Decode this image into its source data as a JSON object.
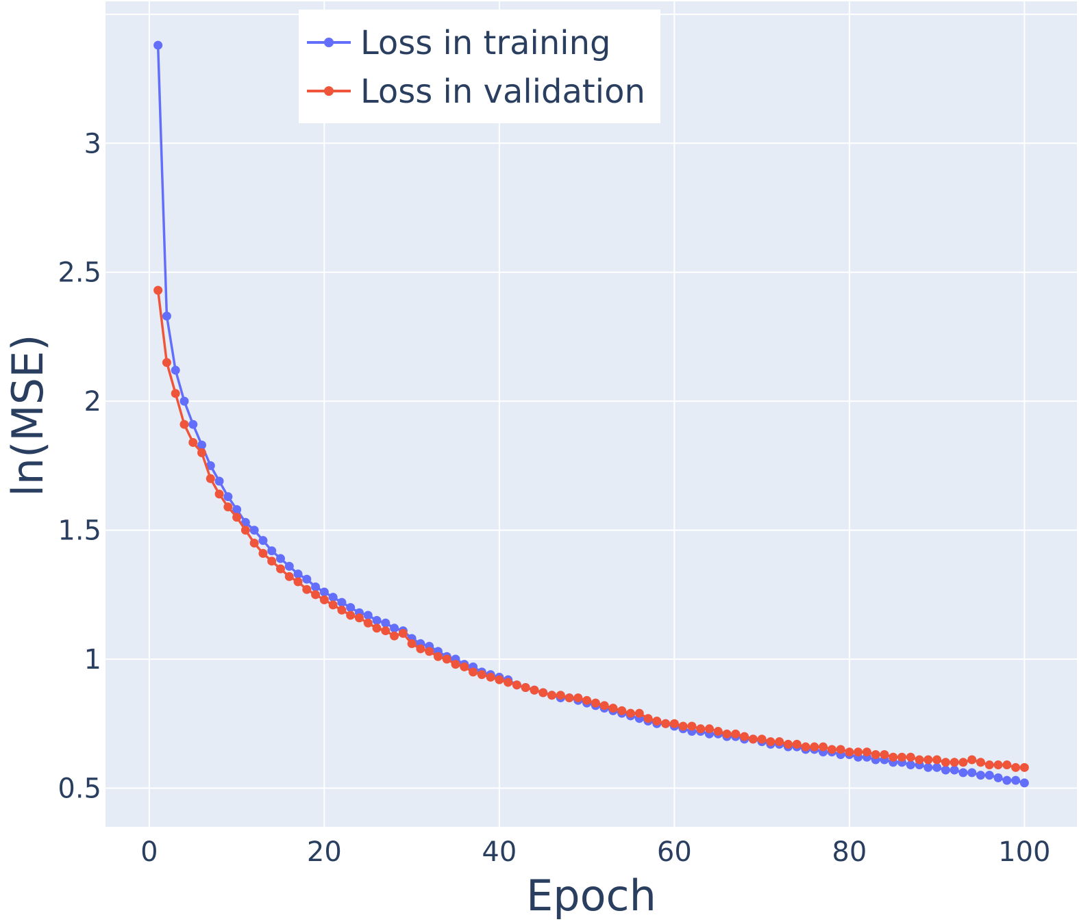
{
  "chart_data": {
    "type": "line",
    "title": "",
    "xlabel": "Epoch",
    "ylabel": "ln(MSE)",
    "xlim": [
      -5,
      106
    ],
    "ylim": [
      0.35,
      3.55
    ],
    "xticks": [
      0,
      20,
      40,
      60,
      80,
      100
    ],
    "xtick_labels": [
      "0",
      "20",
      "40",
      "60",
      "80",
      "100"
    ],
    "yticks": [
      0.5,
      1,
      1.5,
      2,
      2.5,
      3
    ],
    "ytick_labels": [
      "0.5",
      "1",
      "1.5",
      "2",
      "2.5",
      "3"
    ],
    "grid": true,
    "legend_position": "top",
    "x": [
      1,
      2,
      3,
      4,
      5,
      6,
      7,
      8,
      9,
      10,
      11,
      12,
      13,
      14,
      15,
      16,
      17,
      18,
      19,
      20,
      21,
      22,
      23,
      24,
      25,
      26,
      27,
      28,
      29,
      30,
      31,
      32,
      33,
      34,
      35,
      36,
      37,
      38,
      39,
      40,
      41,
      42,
      43,
      44,
      45,
      46,
      47,
      48,
      49,
      50,
      51,
      52,
      53,
      54,
      55,
      56,
      57,
      58,
      59,
      60,
      61,
      62,
      63,
      64,
      65,
      66,
      67,
      68,
      69,
      70,
      71,
      72,
      73,
      74,
      75,
      76,
      77,
      78,
      79,
      80,
      81,
      82,
      83,
      84,
      85,
      86,
      87,
      88,
      89,
      90,
      91,
      92,
      93,
      94,
      95,
      96,
      97,
      98,
      99,
      100
    ],
    "series": [
      {
        "name": "Loss in training",
        "color": "#636efa",
        "values": [
          3.38,
          2.33,
          2.12,
          2.0,
          1.91,
          1.83,
          1.75,
          1.69,
          1.63,
          1.58,
          1.53,
          1.5,
          1.46,
          1.42,
          1.39,
          1.36,
          1.33,
          1.31,
          1.28,
          1.26,
          1.24,
          1.22,
          1.2,
          1.18,
          1.17,
          1.15,
          1.14,
          1.12,
          1.11,
          1.08,
          1.06,
          1.05,
          1.03,
          1.01,
          1.0,
          0.98,
          0.97,
          0.95,
          0.94,
          0.93,
          0.92,
          0.9,
          0.89,
          0.88,
          0.87,
          0.86,
          0.85,
          0.85,
          0.84,
          0.83,
          0.82,
          0.81,
          0.8,
          0.79,
          0.78,
          0.77,
          0.76,
          0.75,
          0.75,
          0.74,
          0.73,
          0.72,
          0.72,
          0.71,
          0.71,
          0.7,
          0.7,
          0.69,
          0.69,
          0.68,
          0.67,
          0.67,
          0.66,
          0.66,
          0.65,
          0.65,
          0.64,
          0.64,
          0.63,
          0.63,
          0.62,
          0.62,
          0.61,
          0.61,
          0.6,
          0.6,
          0.59,
          0.59,
          0.58,
          0.58,
          0.57,
          0.57,
          0.56,
          0.56,
          0.55,
          0.55,
          0.54,
          0.53,
          0.53,
          0.52
        ]
      },
      {
        "name": "Loss in validation",
        "color": "#ef553b",
        "values": [
          2.43,
          2.15,
          2.03,
          1.91,
          1.84,
          1.8,
          1.7,
          1.64,
          1.59,
          1.55,
          1.5,
          1.45,
          1.41,
          1.38,
          1.35,
          1.32,
          1.3,
          1.27,
          1.25,
          1.23,
          1.21,
          1.19,
          1.17,
          1.16,
          1.14,
          1.12,
          1.11,
          1.09,
          1.1,
          1.06,
          1.04,
          1.03,
          1.01,
          1.0,
          0.98,
          0.97,
          0.95,
          0.94,
          0.93,
          0.92,
          0.91,
          0.9,
          0.89,
          0.88,
          0.87,
          0.86,
          0.86,
          0.85,
          0.85,
          0.84,
          0.83,
          0.82,
          0.81,
          0.8,
          0.79,
          0.79,
          0.77,
          0.76,
          0.75,
          0.75,
          0.74,
          0.74,
          0.73,
          0.73,
          0.72,
          0.71,
          0.71,
          0.7,
          0.69,
          0.69,
          0.68,
          0.68,
          0.67,
          0.67,
          0.66,
          0.66,
          0.66,
          0.65,
          0.65,
          0.64,
          0.64,
          0.64,
          0.63,
          0.63,
          0.62,
          0.62,
          0.62,
          0.61,
          0.61,
          0.61,
          0.6,
          0.6,
          0.6,
          0.61,
          0.6,
          0.59,
          0.59,
          0.59,
          0.58,
          0.58
        ]
      }
    ]
  }
}
